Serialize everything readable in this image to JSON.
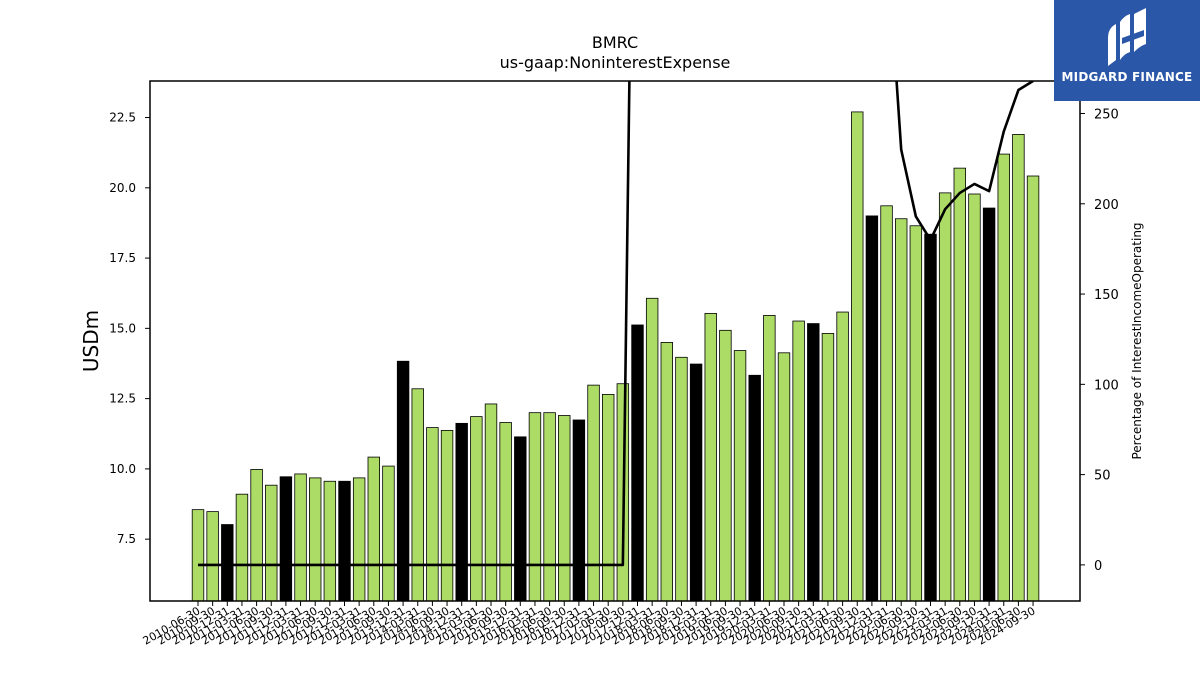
{
  "logo": {
    "text": "MIDGARD FINANCE",
    "background": "#2a57a8",
    "icon": "midgard-logo-icon"
  },
  "chart_data": {
    "type": "bar",
    "title": "BMRC",
    "subtitle": "us-gaap:NoninterestExpense",
    "ylabel": "USDm",
    "y2label": "Percentage of InterestIncomeOperating",
    "ylim": [
      5.3,
      23.8
    ],
    "y2lim": [
      -20,
      268
    ],
    "yticks": [
      "7.5",
      "10.0",
      "12.5",
      "15.0",
      "17.5",
      "20.0",
      "22.5"
    ],
    "y2ticks": [
      "0",
      "50",
      "100",
      "150",
      "200",
      "250"
    ],
    "colors": {
      "bar": "#addc66",
      "bar_highlight": "#000000",
      "line": "#000000"
    },
    "categories": [
      "2010-06-30",
      "2010-09-30",
      "2010-12-31",
      "2011-03-31",
      "2011-06-30",
      "2011-09-30",
      "2011-12-31",
      "2012-03-31",
      "2012-06-30",
      "2012-09-30",
      "2012-12-31",
      "2013-03-31",
      "2013-06-30",
      "2013-09-30",
      "2013-12-31",
      "2014-03-31",
      "2014-06-30",
      "2014-09-30",
      "2014-12-31",
      "2015-03-31",
      "2015-06-30",
      "2015-09-30",
      "2015-12-31",
      "2016-03-31",
      "2016-06-30",
      "2016-09-30",
      "2016-12-31",
      "2017-03-31",
      "2017-06-30",
      "2017-09-30",
      "2017-12-31",
      "2018-03-31",
      "2018-06-30",
      "2018-09-30",
      "2018-12-31",
      "2019-03-31",
      "2019-06-30",
      "2019-09-30",
      "2019-12-31",
      "2020-03-31",
      "2020-06-30",
      "2020-09-30",
      "2020-12-31",
      "2021-03-31",
      "2021-06-30",
      "2021-09-30",
      "2021-12-31",
      "2022-03-31",
      "2022-06-30",
      "2022-09-30",
      "2022-12-31",
      "2023-03-31",
      "2023-06-30",
      "2023-09-30",
      "2023-12-31",
      "2024-03-31",
      "2024-06-30",
      "2024-09-30"
    ],
    "values": [
      8.55,
      8.48,
      8.02,
      9.1,
      9.98,
      9.42,
      9.72,
      9.82,
      9.68,
      9.56,
      9.56,
      9.68,
      10.42,
      10.1,
      13.83,
      12.85,
      11.47,
      11.37,
      11.62,
      11.86,
      12.31,
      11.65,
      11.14,
      12.0,
      12.0,
      11.9,
      11.74,
      12.98,
      12.65,
      13.03,
      15.12,
      16.07,
      14.5,
      13.97,
      13.73,
      15.53,
      14.93,
      14.21,
      13.33,
      15.46,
      14.13,
      15.26,
      15.17,
      14.82,
      15.58,
      22.7,
      19.0,
      19.36,
      18.9,
      18.65,
      18.35,
      19.82,
      20.7,
      19.78,
      19.28,
      21.2,
      21.9,
      20.42
    ],
    "highlight": [
      false,
      false,
      true,
      false,
      false,
      false,
      true,
      false,
      false,
      false,
      true,
      false,
      false,
      false,
      true,
      false,
      false,
      false,
      true,
      false,
      false,
      false,
      true,
      false,
      false,
      false,
      true,
      false,
      false,
      false,
      true,
      false,
      false,
      false,
      true,
      false,
      false,
      false,
      true,
      false,
      false,
      false,
      true,
      false,
      false,
      false,
      true,
      false,
      false,
      false,
      true,
      false,
      false,
      false,
      true,
      false,
      false,
      false
    ],
    "line_series": {
      "axis": "right",
      "values": [
        0,
        0,
        0,
        0,
        0,
        0,
        0,
        0,
        0,
        0,
        0,
        0,
        0,
        0,
        0,
        0,
        0,
        0,
        0,
        0,
        0,
        0,
        0,
        0,
        0,
        0,
        0,
        0,
        0,
        0,
        600,
        600,
        600,
        600,
        600,
        600,
        600,
        600,
        600,
        600,
        600,
        600,
        600,
        600,
        600,
        600,
        600,
        350,
        230,
        193,
        180,
        197,
        206,
        211,
        207,
        240,
        263,
        268
      ]
    }
  }
}
